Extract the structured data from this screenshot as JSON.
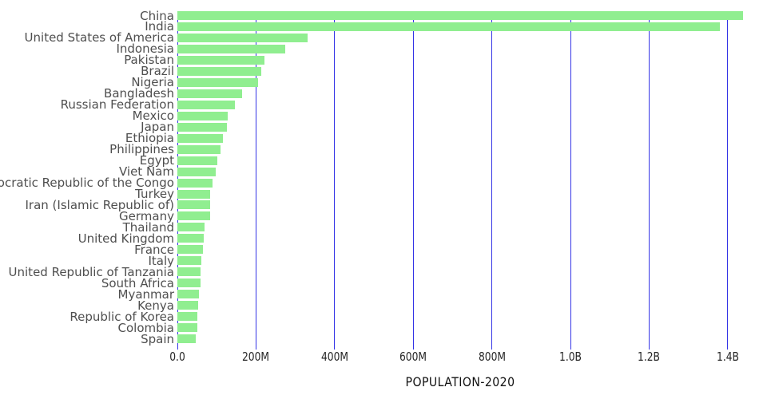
{
  "colors": {
    "bar": "#90EE90",
    "gridline": "#3434E6",
    "country_label": "#4F4F4F",
    "tick_label": "#262626",
    "title": "#111111",
    "background": "#FFFFFF"
  },
  "chart_data": {
    "type": "bar",
    "orientation": "horizontal",
    "title": "POPULATION-2020",
    "xlabel": "POPULATION-2020",
    "ylabel": "",
    "grid": true,
    "legend": false,
    "xlim": [
      0,
      1500000000
    ],
    "x_ticks": [
      {
        "label": "0.0",
        "value": 0
      },
      {
        "label": "200M",
        "value": 200000000
      },
      {
        "label": "400M",
        "value": 400000000
      },
      {
        "label": "600M",
        "value": 600000000
      },
      {
        "label": "800M",
        "value": 800000000
      },
      {
        "label": "1.0B",
        "value": 1000000000
      },
      {
        "label": "1.2B",
        "value": 1200000000
      },
      {
        "label": "1.4B",
        "value": 1400000000
      }
    ],
    "categories": [
      "China",
      "India",
      "United States of America",
      "Indonesia",
      "Pakistan",
      "Brazil",
      "Nigeria",
      "Bangladesh",
      "Russian Federation",
      "Mexico",
      "Japan",
      "Ethiopia",
      "Philippines",
      "Egypt",
      "Viet Nam",
      "Democratic Republic of the Congo",
      "Turkey",
      "Iran (Islamic Republic of)",
      "Germany",
      "Thailand",
      "United Kingdom",
      "France",
      "Italy",
      "United Republic of Tanzania",
      "South Africa",
      "Myanmar",
      "Kenya",
      "Republic of Korea",
      "Colombia",
      "Spain"
    ],
    "values": [
      1439323776,
      1380004385,
      331002651,
      273523615,
      220892340,
      212559417,
      206139589,
      164689383,
      145934462,
      128932753,
      126476461,
      114963588,
      109581078,
      102334404,
      97338579,
      89561403,
      84339067,
      83992949,
      83783942,
      69799978,
      67886011,
      65273511,
      60461826,
      59734218,
      59308690,
      54409800,
      53771296,
      51269185,
      50882891,
      46754778
    ]
  }
}
